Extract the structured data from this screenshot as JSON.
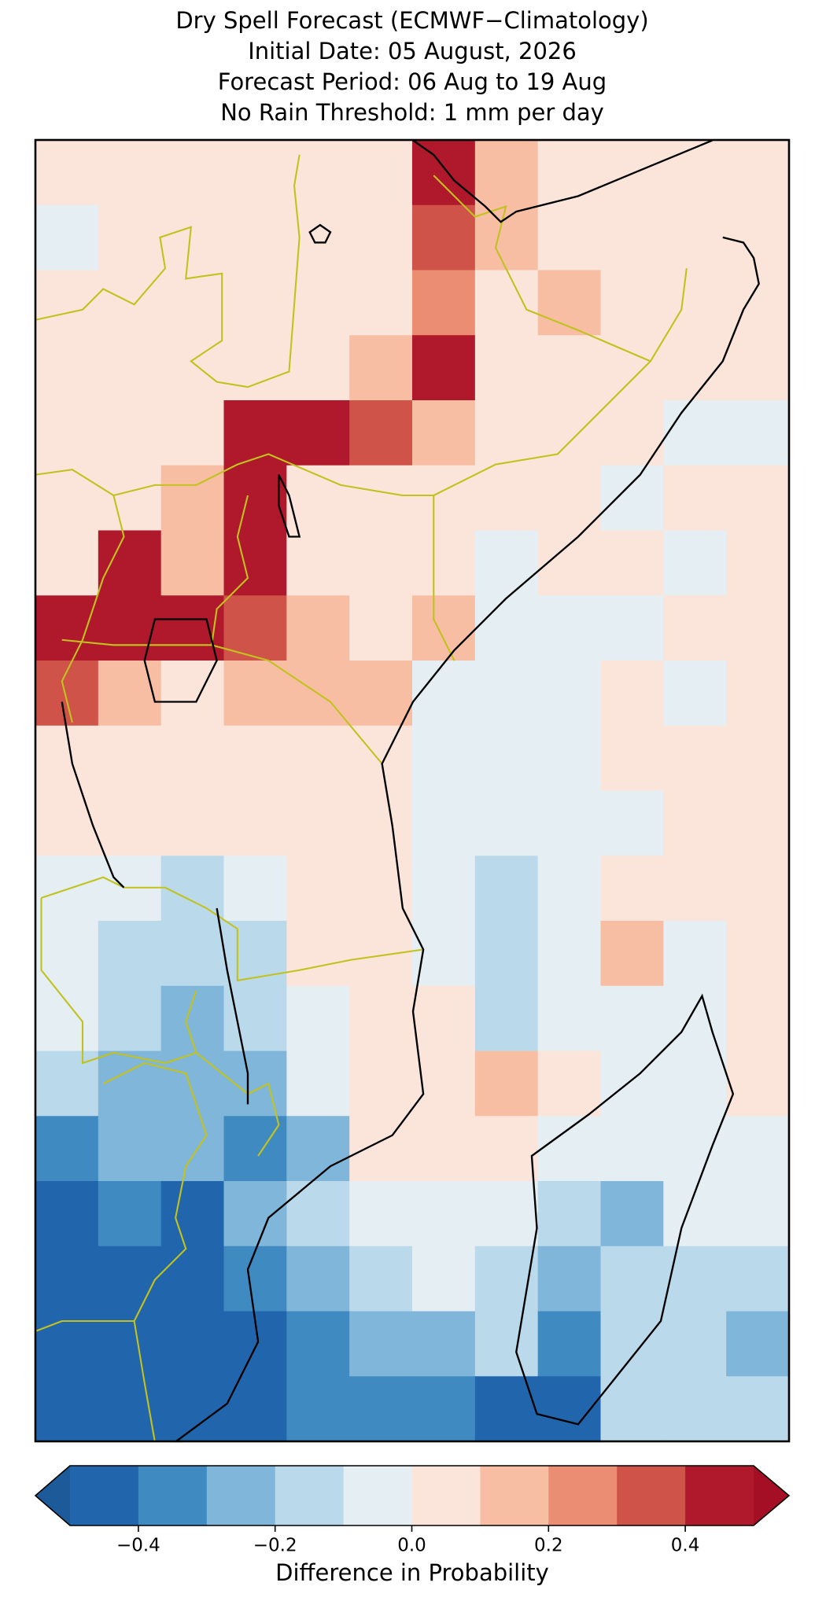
{
  "chart_data": {
    "type": "map",
    "title": [
      "Dry Spell Forecast (ECMWF−Climatology)",
      "Initial Date: 05 August, 2026",
      "Forecast Period: 06 Aug to 19 Aug",
      "No Rain Threshold: 1 mm per day"
    ],
    "values": [
      [
        0.05,
        0.05,
        0.05,
        0.05,
        0.05,
        0.05,
        0.45,
        0.15,
        0.05,
        0.05,
        0.05,
        0.05
      ],
      [
        -0.05,
        0.05,
        0.05,
        0.05,
        0.05,
        0.05,
        0.35,
        0.15,
        0.05,
        0.05,
        0.05,
        0.05
      ],
      [
        0.05,
        0.05,
        0.05,
        0.05,
        0.05,
        0.05,
        0.25,
        0.05,
        0.15,
        0.05,
        0.05,
        0.05
      ],
      [
        0.05,
        0.05,
        0.05,
        0.05,
        0.05,
        0.15,
        0.45,
        0.05,
        0.05,
        0.05,
        0.05,
        0.05
      ],
      [
        0.05,
        0.05,
        0.05,
        0.45,
        0.45,
        0.35,
        0.15,
        0.05,
        0.05,
        0.05,
        -0.05,
        -0.05
      ],
      [
        0.05,
        0.05,
        0.15,
        0.45,
        0.05,
        0.05,
        0.05,
        0.05,
        0.05,
        -0.05,
        0.05,
        0.05
      ],
      [
        0.05,
        0.45,
        0.15,
        0.45,
        0.05,
        0.05,
        0.05,
        -0.05,
        0.05,
        0.05,
        -0.05,
        0.05
      ],
      [
        0.45,
        0.45,
        0.45,
        0.35,
        0.15,
        0.05,
        0.15,
        -0.05,
        -0.05,
        -0.05,
        0.05,
        0.05
      ],
      [
        0.35,
        0.15,
        0.05,
        0.15,
        0.15,
        0.15,
        -0.05,
        -0.05,
        -0.05,
        0.05,
        -0.05,
        0.05
      ],
      [
        0.05,
        0.05,
        0.05,
        0.05,
        0.05,
        0.05,
        -0.05,
        -0.05,
        -0.05,
        0.05,
        0.05,
        0.05
      ],
      [
        0.05,
        0.05,
        0.05,
        0.05,
        0.05,
        0.05,
        -0.05,
        -0.05,
        -0.05,
        -0.05,
        0.05,
        0.05
      ],
      [
        -0.05,
        -0.05,
        -0.15,
        -0.05,
        0.05,
        0.05,
        -0.05,
        -0.15,
        -0.05,
        0.05,
        0.05,
        0.05
      ],
      [
        -0.05,
        -0.15,
        -0.15,
        -0.15,
        0.05,
        0.05,
        -0.05,
        -0.15,
        -0.05,
        0.15,
        -0.05,
        0.05
      ],
      [
        -0.05,
        -0.15,
        -0.25,
        -0.15,
        -0.05,
        0.05,
        0.05,
        -0.15,
        -0.05,
        -0.05,
        -0.05,
        0.05
      ],
      [
        -0.15,
        -0.25,
        -0.25,
        -0.25,
        -0.05,
        0.05,
        0.05,
        0.15,
        0.05,
        -0.05,
        -0.05,
        0.05
      ],
      [
        -0.35,
        -0.25,
        -0.25,
        -0.35,
        -0.25,
        0.05,
        0.05,
        0.05,
        -0.05,
        -0.05,
        -0.05,
        -0.05
      ],
      [
        -0.45,
        -0.35,
        -0.45,
        -0.25,
        -0.15,
        -0.05,
        -0.05,
        -0.05,
        -0.15,
        -0.25,
        -0.05,
        -0.05
      ],
      [
        -0.45,
        -0.45,
        -0.45,
        -0.35,
        -0.25,
        -0.15,
        -0.05,
        -0.15,
        -0.25,
        -0.15,
        -0.15,
        -0.15
      ],
      [
        -0.45,
        -0.45,
        -0.45,
        -0.45,
        -0.35,
        -0.25,
        -0.25,
        -0.15,
        -0.35,
        -0.15,
        -0.15,
        -0.25
      ],
      [
        -0.45,
        -0.45,
        -0.45,
        -0.45,
        -0.35,
        -0.35,
        -0.35,
        -0.45,
        -0.45,
        -0.15,
        -0.15,
        -0.15
      ]
    ],
    "colorbar": {
      "label": "Difference in Probability",
      "lim": [
        -0.5,
        0.5
      ],
      "colors": [
        "#2166ac",
        "#3f8bc1",
        "#7fb6d9",
        "#bad9ea",
        "#e4eef3",
        "#fbe4da",
        "#f8bea4",
        "#ea8d73",
        "#cf5348",
        "#b0182b"
      ],
      "under_color": "#1d5a99",
      "over_color": "#a50f25",
      "ticks": [
        {
          "value": -0.4,
          "label": "−0.4"
        },
        {
          "value": -0.2,
          "label": "−0.2"
        },
        {
          "value": 0,
          "label": "0.0"
        },
        0.2,
        0.4
      ]
    }
  }
}
